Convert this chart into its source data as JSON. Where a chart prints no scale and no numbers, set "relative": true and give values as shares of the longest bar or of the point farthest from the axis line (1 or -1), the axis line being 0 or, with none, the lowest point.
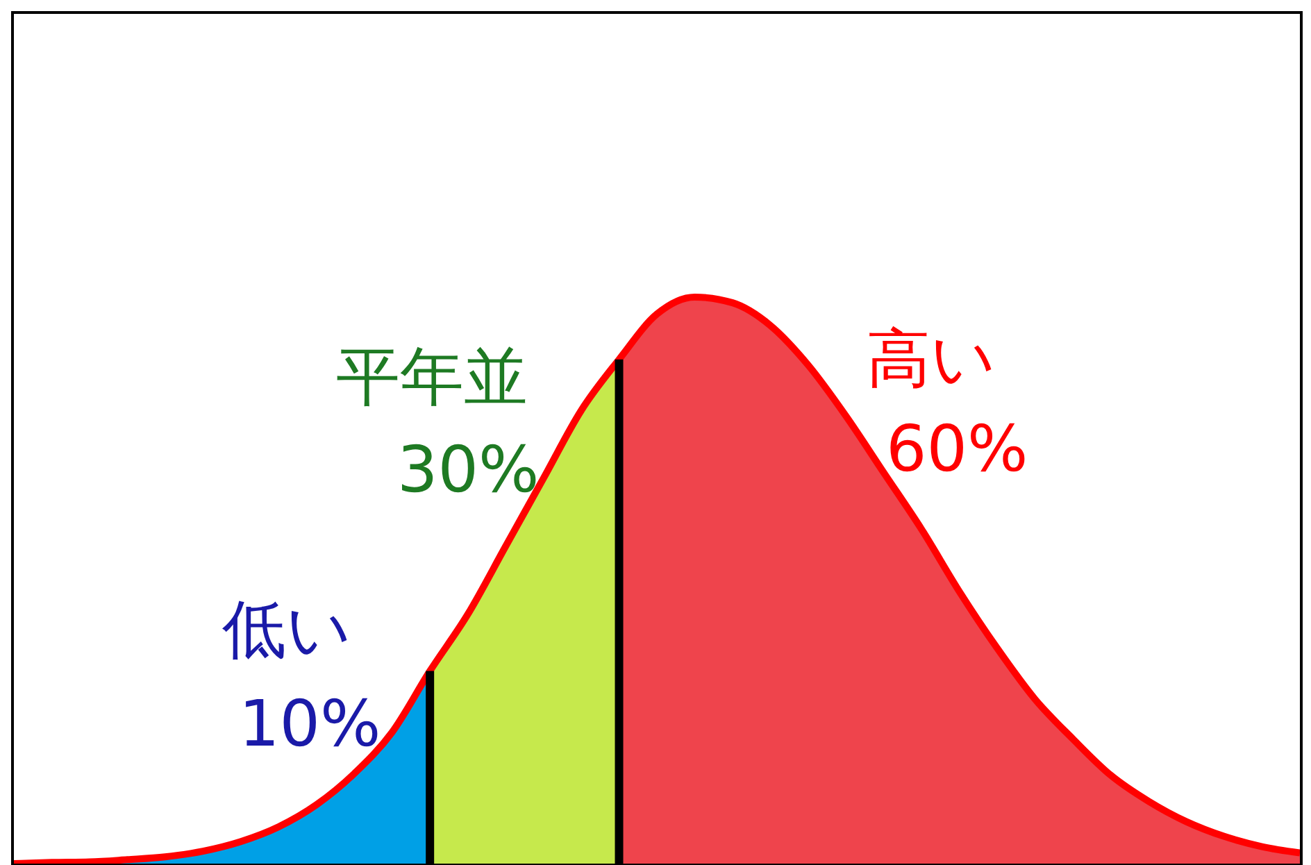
{
  "chart_data": {
    "type": "area",
    "relative": true,
    "categories": [
      null,
      null,
      null,
      null,
      null,
      null,
      null,
      null,
      null,
      null,
      null,
      null,
      null,
      null,
      null,
      null,
      null,
      null,
      null,
      null,
      null,
      null,
      null,
      null,
      null,
      null,
      null,
      null,
      null,
      null,
      null,
      null,
      null,
      null,
      null
    ],
    "series": [
      {
        "color": "#00a0e6",
        "values": [
          0,
          0.002,
          0.003,
          0.007,
          0.012,
          0.022,
          0.039,
          0.065,
          0.104,
          0.159,
          0.232,
          0.34,
          null,
          null,
          null,
          null,
          null,
          null,
          null,
          null,
          null,
          null,
          null,
          null,
          null,
          null,
          null,
          null,
          null,
          null,
          null,
          null,
          null,
          null,
          null
        ]
      },
      {
        "color": "#c6e94c",
        "values": [
          null,
          null,
          null,
          null,
          null,
          null,
          null,
          null,
          null,
          null,
          null,
          0.34,
          0.44,
          0.56,
          0.68,
          0.8,
          0.89,
          null,
          null,
          null,
          null,
          null,
          null,
          null,
          null,
          null,
          null,
          null,
          null,
          null,
          null,
          null,
          null,
          null,
          null
        ]
      },
      {
        "color": "#ef444c",
        "values": [
          null,
          null,
          null,
          null,
          null,
          null,
          null,
          null,
          null,
          null,
          null,
          null,
          null,
          null,
          null,
          null,
          0.89,
          0.97,
          1,
          0.99,
          0.95,
          0.88,
          0.79,
          0.69,
          0.59,
          0.48,
          0.38,
          0.29,
          0.22,
          0.156,
          0.11,
          0.074,
          0.048,
          0.03,
          0.019
        ]
      },
      {
        "type": "line",
        "color": "#ff0000",
        "values": [
          0,
          0.002,
          0.003,
          0.007,
          0.012,
          0.022,
          0.039,
          0.065,
          0.104,
          0.159,
          0.232,
          0.34,
          0.44,
          0.56,
          0.68,
          0.8,
          0.89,
          0.97,
          1,
          0.99,
          0.95,
          0.88,
          0.79,
          0.69,
          0.59,
          0.48,
          0.38,
          0.29,
          0.22,
          0.156,
          0.11,
          0.074,
          0.048,
          0.03,
          0.019
        ]
      }
    ],
    "annotations": [
      "低い",
      "10%",
      "平年並",
      "30%",
      "高い",
      "60%"
    ]
  }
}
